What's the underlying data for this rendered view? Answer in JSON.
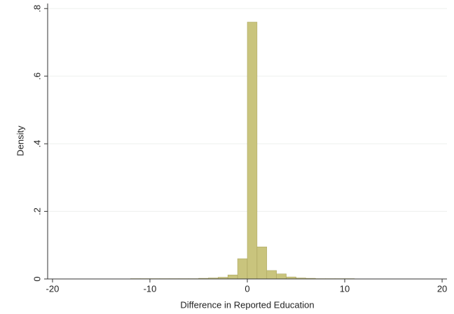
{
  "chart_data": {
    "type": "histogram",
    "x_label": "Difference in Reported Education",
    "y_label": "Density",
    "bins": [
      -20,
      -19,
      -18,
      -17,
      -16,
      -15,
      -14,
      -13,
      -12,
      -11,
      -10,
      -9,
      -8,
      -7,
      -6,
      -5,
      -4,
      -3,
      -2,
      -1,
      0,
      1,
      2,
      3,
      4,
      5,
      6,
      7,
      8,
      9,
      10,
      11,
      12,
      13,
      14,
      15,
      16,
      17,
      18,
      19,
      20
    ],
    "values": [
      0,
      0,
      0,
      0.0005,
      0.0005,
      0.0005,
      0.0005,
      0.0005,
      0.001,
      0.001,
      0.001,
      0.001,
      0.001,
      0.001,
      0.001,
      0.002,
      0.003,
      0.005,
      0.012,
      0.06,
      0.76,
      0.095,
      0.025,
      0.015,
      0.006,
      0.003,
      0.002,
      0.001,
      0.001,
      0.001,
      0.001,
      0.0005,
      0.0005,
      0.0005,
      0.0005,
      0.0005,
      0.0005,
      0.0005,
      0,
      0
    ],
    "color": "#c9c47d",
    "edge_color": "#a5a05a",
    "xlim": [
      -20.5,
      20.5
    ],
    "ylim": [
      0,
      0.815
    ],
    "xticks": [
      -20,
      -10,
      0,
      10,
      20
    ],
    "yticks": [
      0,
      {
        "value": 0.2,
        "label": ".2"
      },
      {
        "value": 0.4,
        "label": ".4"
      },
      {
        "value": 0.6,
        "label": ".6"
      },
      {
        "value": 0.8,
        "label": ".8"
      }
    ],
    "grid": true
  }
}
